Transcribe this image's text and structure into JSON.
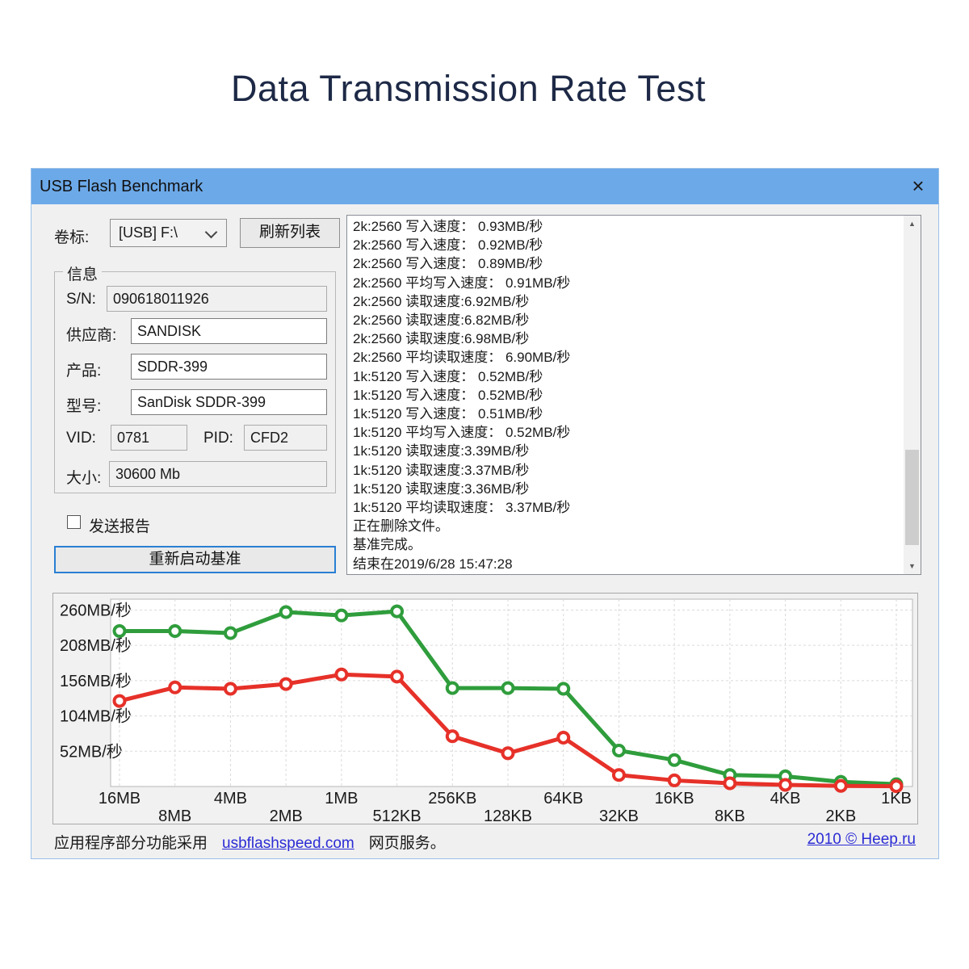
{
  "page": {
    "title": "Data Transmission Rate Test"
  },
  "window": {
    "title": "USB Flash Benchmark",
    "close_icon": "×"
  },
  "toolbar": {
    "volume_label": "卷标:",
    "volume_value": "[USB] F:\\",
    "refresh_button": "刷新列表"
  },
  "info": {
    "group_label": "信息",
    "sn_label": "S/N:",
    "sn_value": "090618011926",
    "vendor_label": "供应商:",
    "vendor_value": "SANDISK",
    "product_label": "产品:",
    "product_value": "SDDR-399",
    "model_label": "型号:",
    "model_value": "SanDisk SDDR-399",
    "vid_label": "VID:",
    "vid_value": "0781",
    "pid_label": "PID:",
    "pid_value": "CFD2",
    "size_label": "大小:",
    "size_value": "30600 Mb"
  },
  "report_checkbox": {
    "label": "发送报告",
    "checked": false
  },
  "restart_button": "重新启动基准",
  "log": {
    "lines": [
      "2k:2560 写入速度： 0.93MB/秒",
      "2k:2560 写入速度： 0.92MB/秒",
      "2k:2560 写入速度： 0.89MB/秒",
      "2k:2560 平均写入速度： 0.91MB/秒",
      "2k:2560 读取速度:6.92MB/秒",
      "2k:2560 读取速度:6.82MB/秒",
      "2k:2560 读取速度:6.98MB/秒",
      "2k:2560 平均读取速度： 6.90MB/秒",
      "1k:5120 写入速度： 0.52MB/秒",
      "1k:5120 写入速度： 0.52MB/秒",
      "1k:5120 写入速度： 0.51MB/秒",
      "1k:5120 平均写入速度： 0.52MB/秒",
      "1k:5120 读取速度:3.39MB/秒",
      "1k:5120 读取速度:3.37MB/秒",
      "1k:5120 读取速度:3.36MB/秒",
      "1k:5120 平均读取速度： 3.37MB/秒",
      "正在删除文件。",
      "基准完成。",
      "结束在2019/6/28 15:47:28"
    ],
    "scroll_up_icon": "▲",
    "scroll_down_icon": "▼"
  },
  "chart_data": {
    "type": "line",
    "title": "",
    "xlabel": "",
    "ylabel": "",
    "grid": true,
    "legend_position": "none",
    "ylim": [
      0,
      276
    ],
    "categories": [
      "16MB",
      "8MB",
      "4MB",
      "2MB",
      "1MB",
      "512KB",
      "256KB",
      "128KB",
      "64KB",
      "32KB",
      "16KB",
      "8KB",
      "4KB",
      "2KB",
      "1KB"
    ],
    "series": [
      {
        "name": "读取速度",
        "color": "#2f9d3c",
        "values": [
          229,
          229,
          226,
          257,
          252,
          258,
          145,
          145,
          144,
          53,
          39,
          17,
          15,
          6.9,
          3.4
        ]
      },
      {
        "name": "写入速度",
        "color": "#e63129",
        "values": [
          126,
          146,
          144,
          151,
          165,
          162,
          74,
          49,
          72,
          17,
          9,
          4.8,
          2.4,
          0.9,
          0.5
        ]
      }
    ],
    "yticks": [
      {
        "value": 52,
        "label": "52MB/秒"
      },
      {
        "value": 104,
        "label": "104MB/秒"
      },
      {
        "value": 156,
        "label": "156MB/秒"
      },
      {
        "value": 208,
        "label": "208MB/秒"
      },
      {
        "value": 260,
        "label": "260MB/秒"
      }
    ]
  },
  "footer": {
    "left_prefix": "应用程序部分功能采用",
    "left_link": "usbflashspeed.com",
    "left_suffix": "网页服务。",
    "right_link": "2010 © Heep.ru"
  },
  "colors": {
    "titlebar": "#6ca9e8",
    "window_bg": "#f0f0f0",
    "read_line": "#2f9d3c",
    "write_line": "#e63129",
    "link": "#2b2bd5",
    "heading": "#1d2946"
  }
}
